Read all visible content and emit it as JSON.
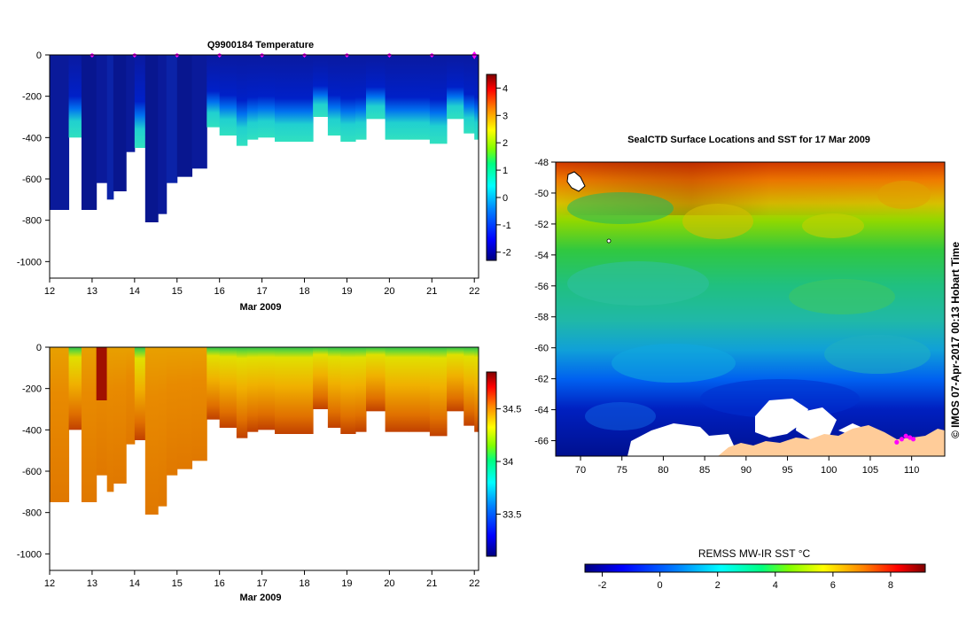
{
  "temperature_panel": {
    "title": "Q9900184  Temperature",
    "xlabel": "Mar 2009"
  },
  "salinity_panel": {
    "title": "",
    "xlabel": "Mar 2009"
  },
  "map_panel": {
    "title": "SealCTD Surface Locations and SST for 17 Mar 2009",
    "side_label": "© IMOS 07-Apr-2017 00:13 Hobart Time",
    "colorbar_label": "REMSS MW-IR SST °C"
  },
  "colors": {
    "ocean_palette": [
      "#00007f",
      "#0000ff",
      "#0080ff",
      "#00ffff",
      "#00ff80",
      "#80ff00",
      "#ffff00",
      "#ff8000",
      "#ff0000",
      "#7f0000"
    ],
    "land": "#ffcc99",
    "ice": "#ffffff",
    "profile_marker": "#ff00ff"
  },
  "chart_data": [
    {
      "type": "heatmap",
      "name": "temperature",
      "title": "Q9900184  Temperature",
      "xlabel": "Mar 2009",
      "ylabel": "",
      "x_ticks": [
        "12",
        "13",
        "14",
        "15",
        "16",
        "17",
        "18",
        "19",
        "20",
        "21",
        "22"
      ],
      "y_ticks": [
        "0",
        "-200",
        "-400",
        "-600",
        "-800",
        "-1000"
      ],
      "xlim": [
        12,
        22.1
      ],
      "ylim": [
        -1080,
        0
      ],
      "colorbar_ticks": [
        "4",
        "3",
        "2",
        "1",
        "0",
        "-1",
        "-2"
      ],
      "colorbar_range": [
        -2.3,
        4.5
      ],
      "profile_markers_x": [
        13,
        14,
        15,
        16,
        17,
        18,
        19,
        20,
        21,
        22
      ],
      "profiles": [
        {
          "x": [
            12.0,
            12.45
          ],
          "max_depth": 750
        },
        {
          "x": [
            12.45,
            12.75
          ],
          "max_depth": 400
        },
        {
          "x": [
            12.75,
            13.1
          ],
          "max_depth": 750
        },
        {
          "x": [
            13.1,
            13.35
          ],
          "max_depth": 620
        },
        {
          "x": [
            13.35,
            13.5
          ],
          "max_depth": 700
        },
        {
          "x": [
            13.5,
            13.8
          ],
          "max_depth": 660
        },
        {
          "x": [
            13.8,
            14.0
          ],
          "max_depth": 470
        },
        {
          "x": [
            14.0,
            14.25
          ],
          "max_depth": 450
        },
        {
          "x": [
            14.25,
            14.55
          ],
          "max_depth": 810
        },
        {
          "x": [
            14.55,
            14.75
          ],
          "max_depth": 770
        },
        {
          "x": [
            14.75,
            15.0
          ],
          "max_depth": 620
        },
        {
          "x": [
            15.0,
            15.35
          ],
          "max_depth": 590
        },
        {
          "x": [
            15.35,
            15.7
          ],
          "max_depth": 550
        },
        {
          "x": [
            15.7,
            16.0
          ],
          "max_depth": 350
        },
        {
          "x": [
            16.0,
            16.4
          ],
          "max_depth": 390
        },
        {
          "x": [
            16.4,
            16.65
          ],
          "max_depth": 440
        },
        {
          "x": [
            16.65,
            16.9
          ],
          "max_depth": 410
        },
        {
          "x": [
            16.9,
            17.3
          ],
          "max_depth": 400
        },
        {
          "x": [
            17.3,
            17.75
          ],
          "max_depth": 420
        },
        {
          "x": [
            17.75,
            18.2
          ],
          "max_depth": 420
        },
        {
          "x": [
            18.2,
            18.55
          ],
          "max_depth": 300
        },
        {
          "x": [
            18.55,
            18.85
          ],
          "max_depth": 390
        },
        {
          "x": [
            18.85,
            19.2
          ],
          "max_depth": 420
        },
        {
          "x": [
            19.2,
            19.45
          ],
          "max_depth": 410
        },
        {
          "x": [
            19.45,
            19.9
          ],
          "max_depth": 310
        },
        {
          "x": [
            19.9,
            20.45
          ],
          "max_depth": 410
        },
        {
          "x": [
            20.45,
            20.95
          ],
          "max_depth": 410
        },
        {
          "x": [
            20.95,
            21.35
          ],
          "max_depth": 430
        },
        {
          "x": [
            21.35,
            21.75
          ],
          "max_depth": 310
        },
        {
          "x": [
            21.75,
            22.0
          ],
          "max_depth": 380
        },
        {
          "x": [
            22.0,
            22.1
          ],
          "max_depth": 410
        }
      ]
    },
    {
      "type": "heatmap",
      "name": "salinity",
      "title": "",
      "xlabel": "Mar 2009",
      "ylabel": "",
      "x_ticks": [
        "12",
        "13",
        "14",
        "15",
        "16",
        "17",
        "18",
        "19",
        "20",
        "21",
        "22"
      ],
      "y_ticks": [
        "0",
        "-200",
        "-400",
        "-600",
        "-800",
        "-1000"
      ],
      "xlim": [
        12,
        22.1
      ],
      "ylim": [
        -1080,
        0
      ],
      "colorbar_ticks": [
        "34.5",
        "34",
        "33.5"
      ],
      "colorbar_range": [
        33.1,
        34.85
      ]
    },
    {
      "type": "heatmap",
      "name": "sst_map",
      "title": "SealCTD Surface Locations and SST for 17 Mar 2009",
      "xlabel": "",
      "ylabel": "",
      "x_ticks": [
        "70",
        "75",
        "80",
        "85",
        "90",
        "95",
        "100",
        "105",
        "110"
      ],
      "y_ticks": [
        "-48",
        "-50",
        "-52",
        "-54",
        "-56",
        "-58",
        "-60",
        "-62",
        "-64",
        "-66"
      ],
      "xlim": [
        67,
        114
      ],
      "ylim": [
        -67,
        -48
      ],
      "colorbar_label": "REMSS MW-IR SST °C",
      "colorbar_ticks": [
        "-2",
        "0",
        "2",
        "4",
        "6",
        "8"
      ],
      "colorbar_range": [
        -2.6,
        9.2
      ],
      "seal_positions": [
        [
          108.2,
          -66.1
        ],
        [
          108.8,
          -65.9
        ],
        [
          109.3,
          -65.7
        ],
        [
          109.8,
          -65.8
        ],
        [
          110.2,
          -65.9
        ]
      ]
    }
  ]
}
